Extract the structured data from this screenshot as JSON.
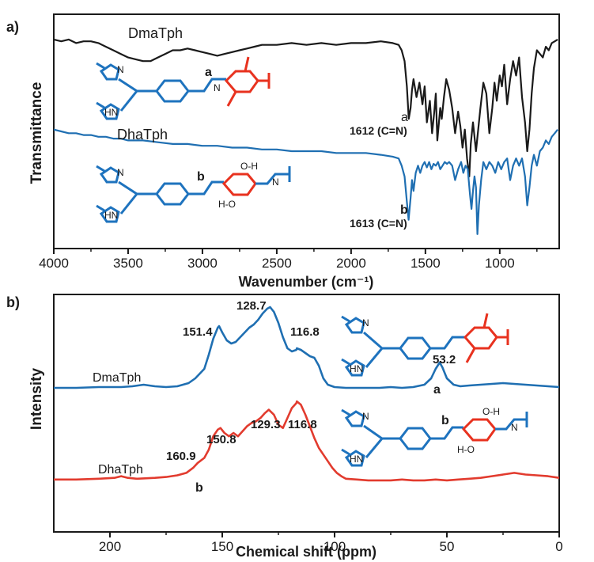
{
  "colors": {
    "black": "#1a1a1a",
    "blue": "#1f6fb2",
    "red": "#e23b2e",
    "struct_blue": "#1e73be",
    "struct_red": "#e8321f"
  },
  "chart_data": [
    {
      "type": "line",
      "panel_label": "a)",
      "xlabel": "Wavenumber (cm⁻¹)",
      "ylabel": "Transmittance",
      "xlim": [
        4000,
        600
      ],
      "x_reversed": true,
      "xticks": [
        4000,
        3500,
        3000,
        2500,
        2000,
        1500,
        1000
      ],
      "xtick_labels": [
        "4000",
        "3500",
        "3000",
        "2500",
        "2000",
        "1500",
        "1000"
      ],
      "grid": false,
      "series": [
        {
          "name": "DmaTph",
          "color": "#1a1a1a",
          "x": [
            4000,
            3950,
            3900,
            3850,
            3800,
            3750,
            3700,
            3650,
            3600,
            3550,
            3500,
            3450,
            3400,
            3350,
            3300,
            3250,
            3200,
            3150,
            3100,
            3050,
            3000,
            2950,
            2900,
            2850,
            2800,
            2750,
            2700,
            2650,
            2600,
            2500,
            2400,
            2300,
            2200,
            2100,
            2000,
            1900,
            1800,
            1720,
            1680,
            1660,
            1640,
            1625,
            1612,
            1600,
            1590,
            1580,
            1560,
            1540,
            1520,
            1505,
            1490,
            1470,
            1455,
            1440,
            1430,
            1420,
            1400,
            1390,
            1375,
            1360,
            1340,
            1320,
            1300,
            1280,
            1265,
            1250,
            1235,
            1220,
            1205,
            1195,
            1180,
            1160,
            1145,
            1130,
            1110,
            1090,
            1070,
            1050,
            1035,
            1020,
            1000,
            985,
            970,
            950,
            930,
            910,
            890,
            870,
            850,
            830,
            815,
            800,
            785,
            770,
            750,
            730,
            710,
            690,
            670,
            650,
            630,
            610
          ],
          "y": [
            96,
            95,
            96,
            94,
            95,
            95,
            94,
            92,
            90,
            88,
            86,
            85,
            84,
            84,
            86,
            88,
            90,
            90,
            91,
            90,
            89,
            88,
            87,
            88,
            89,
            90,
            91,
            92,
            93,
            93,
            94,
            93,
            94,
            93,
            94,
            94,
            95,
            94,
            93,
            90,
            84,
            70,
            52,
            58,
            68,
            74,
            64,
            72,
            60,
            70,
            50,
            62,
            44,
            56,
            66,
            40,
            58,
            52,
            64,
            74,
            68,
            58,
            44,
            56,
            48,
            36,
            46,
            30,
            20,
            38,
            50,
            34,
            46,
            58,
            72,
            66,
            44,
            58,
            72,
            62,
            76,
            70,
            82,
            60,
            74,
            84,
            76,
            86,
            64,
            50,
            34,
            46,
            66,
            80,
            90,
            88,
            86,
            92,
            90,
            94,
            95,
            96
          ]
        },
        {
          "name": "DhaTph",
          "color": "#1f6fb2",
          "x": [
            4000,
            3950,
            3900,
            3850,
            3800,
            3750,
            3700,
            3650,
            3600,
            3550,
            3500,
            3400,
            3300,
            3200,
            3100,
            3000,
            2900,
            2800,
            2700,
            2600,
            2500,
            2400,
            2300,
            2200,
            2100,
            2000,
            1900,
            1800,
            1720,
            1680,
            1660,
            1640,
            1625,
            1613,
            1600,
            1590,
            1580,
            1565,
            1550,
            1535,
            1520,
            1505,
            1490,
            1475,
            1460,
            1445,
            1430,
            1415,
            1400,
            1385,
            1370,
            1355,
            1340,
            1320,
            1300,
            1280,
            1260,
            1245,
            1230,
            1215,
            1200,
            1190,
            1180,
            1170,
            1160,
            1150,
            1140,
            1125,
            1110,
            1090,
            1070,
            1050,
            1030,
            1010,
            990,
            970,
            950,
            930,
            910,
            890,
            870,
            850,
            830,
            815,
            800,
            785,
            770,
            750,
            730,
            710,
            690,
            670,
            650,
            630,
            610
          ],
          "y": [
            46,
            45,
            44,
            44,
            43,
            43,
            42,
            42,
            41,
            41,
            40,
            40,
            39,
            38,
            38,
            37,
            37,
            36,
            36,
            35,
            35,
            34,
            34,
            34,
            33,
            33,
            33,
            32,
            31,
            30,
            26,
            20,
            6,
            -4,
            8,
            18,
            12,
            22,
            26,
            22,
            26,
            28,
            25,
            28,
            24,
            27,
            26,
            28,
            24,
            26,
            28,
            27,
            28,
            26,
            18,
            24,
            28,
            22,
            26,
            24,
            10,
            2,
            12,
            20,
            14,
            -12,
            4,
            18,
            28,
            24,
            28,
            26,
            22,
            28,
            24,
            28,
            30,
            18,
            26,
            30,
            26,
            30,
            20,
            4,
            14,
            26,
            32,
            26,
            34,
            36,
            40,
            38,
            42,
            44,
            46
          ]
        }
      ],
      "annotations": [
        {
          "text": "DmaTph",
          "x": 3650,
          "y": 104
        },
        {
          "text": "DhaTph",
          "x": 3350,
          "y": 54
        },
        {
          "text": "a",
          "x": 1612,
          "y": 45
        },
        {
          "text": "1612 (C=N)",
          "x": 1500,
          "y": 38
        },
        {
          "text": "b",
          "x": 1613,
          "y": -4
        },
        {
          "text": "1613 (C=N)",
          "x": 1460,
          "y": -12
        }
      ]
    },
    {
      "type": "line",
      "panel_label": "b)",
      "xlabel": "Chemical shift (ppm)",
      "ylabel": "Intensity",
      "xlim": [
        225,
        0
      ],
      "x_reversed": true,
      "xticks": [
        200,
        150,
        100,
        50,
        0
      ],
      "xtick_labels": [
        "200",
        "150",
        "100",
        "50",
        "0"
      ],
      "grid": false,
      "series": [
        {
          "name": "DmaTph",
          "color": "#1f6fb2",
          "x": [
            225,
            215,
            205,
            195,
            190,
            185,
            180,
            175,
            170,
            165,
            162,
            158,
            156,
            154,
            152,
            151.4,
            150,
            148,
            146,
            144,
            142,
            140,
            138,
            136,
            134,
            132,
            130,
            128.7,
            127,
            125,
            123,
            121,
            119,
            117,
            116.8,
            115,
            113,
            111,
            109,
            107,
            105,
            103,
            100,
            95,
            90,
            85,
            80,
            75,
            70,
            65,
            60,
            57,
            55,
            53.2,
            52,
            50,
            47,
            44,
            40,
            35,
            30,
            25,
            20,
            15,
            10,
            5,
            0
          ],
          "y": [
            2,
            2,
            3,
            3,
            4,
            6,
            4,
            3,
            4,
            8,
            14,
            26,
            44,
            64,
            78,
            80,
            72,
            62,
            58,
            60,
            66,
            72,
            78,
            82,
            88,
            96,
            102,
            104,
            98,
            84,
            66,
            52,
            48,
            50,
            52,
            50,
            46,
            42,
            40,
            30,
            14,
            6,
            3,
            2,
            2,
            2,
            2,
            3,
            2,
            3,
            6,
            14,
            26,
            34,
            28,
            14,
            6,
            4,
            5,
            6,
            7,
            8,
            7,
            6,
            5,
            4,
            3
          ]
        },
        {
          "name": "DhaTph",
          "color": "#e23b2e",
          "x": [
            225,
            215,
            205,
            198,
            195,
            192,
            188,
            180,
            175,
            170,
            166,
            163,
            160.9,
            158,
            156,
            154,
            152,
            150.8,
            149,
            147,
            145,
            143,
            141,
            139,
            137,
            135,
            133,
            131,
            129.3,
            127,
            125,
            123,
            121,
            119,
            117,
            116.8,
            115,
            113,
            111,
            109,
            107,
            105,
            103,
            101,
            99,
            97,
            95,
            90,
            85,
            80,
            75,
            70,
            65,
            60,
            55,
            50,
            45,
            40,
            35,
            30,
            25,
            20,
            15,
            10,
            5,
            0
          ],
          "y": [
            4,
            4,
            5,
            6,
            8,
            6,
            5,
            6,
            7,
            9,
            12,
            18,
            24,
            30,
            40,
            56,
            64,
            66,
            60,
            56,
            60,
            56,
            62,
            68,
            72,
            74,
            78,
            84,
            88,
            82,
            70,
            66,
            78,
            90,
            96,
            98,
            94,
            82,
            68,
            54,
            42,
            34,
            26,
            18,
            12,
            8,
            5,
            4,
            3,
            3,
            3,
            4,
            3,
            3,
            4,
            3,
            4,
            5,
            6,
            8,
            10,
            12,
            10,
            9,
            8,
            6
          ]
        }
      ],
      "annotations": [
        {
          "text": "151.4",
          "x": 151.4
        },
        {
          "text": "128.7",
          "x": 128.7
        },
        {
          "text": "116.8",
          "x": 116.8
        },
        {
          "text": "53.2",
          "x": 53.2
        },
        {
          "text": "a",
          "x": 53.2
        },
        {
          "text": "DmaTph",
          "x": 190
        },
        {
          "text": "160.9",
          "x": 160.9
        },
        {
          "text": "150.8",
          "x": 150.8
        },
        {
          "text": "129.3",
          "x": 129.3
        },
        {
          "text": "116.8",
          "x": 116.8
        },
        {
          "text": "b",
          "x": 160.9
        },
        {
          "text": "DhaTph",
          "x": 190
        }
      ]
    }
  ],
  "structures": {
    "a_label": "a",
    "b_label": "b",
    "nh": "HN",
    "n": "N",
    "oh_top": "O-H",
    "ho_bottom": "H-O",
    "oh_top2": "OH",
    "ho_bottom2": "HO",
    "oh_h": "O-H",
    "h_o": "H-O"
  }
}
